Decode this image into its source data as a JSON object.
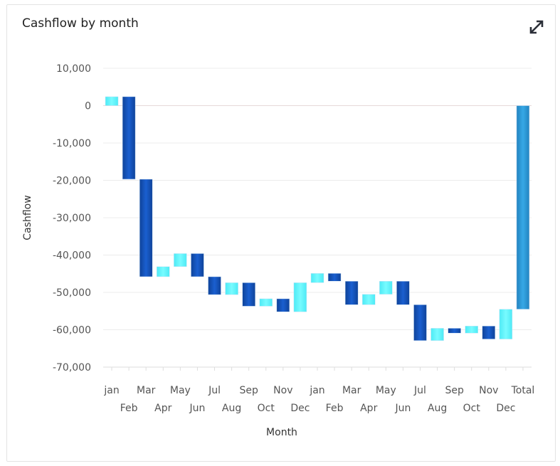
{
  "header": {
    "title": "Cashflow by month",
    "expand_icon": "expand-arrows-icon"
  },
  "chart_data": {
    "type": "waterfall",
    "title": "Cashflow by month",
    "xlabel": "Month",
    "ylabel": "Cashflow",
    "ylim": [
      -70000,
      10000
    ],
    "yticks": [
      10000,
      0,
      -10000,
      -20000,
      -30000,
      -40000,
      -50000,
      -60000,
      -70000
    ],
    "ytick_labels": [
      "10,000",
      "0",
      "-10,000",
      "-20,000",
      "-30,000",
      "-40,000",
      "-50,000",
      "-60,000",
      "-70,000"
    ],
    "grid": true,
    "categories": [
      "jan",
      "Feb",
      "Mar",
      "Apr",
      "May",
      "Jun",
      "Jul",
      "Aug",
      "Sep",
      "Oct",
      "Nov",
      "Dec",
      "jan",
      "Feb",
      "Mar",
      "Apr",
      "May",
      "Jun",
      "Jul",
      "Aug",
      "Sep",
      "Oct",
      "Nov",
      "Dec",
      "Total"
    ],
    "values": [
      2400,
      -22100,
      -26100,
      2700,
      3500,
      -6200,
      -4800,
      3200,
      -6300,
      2000,
      -3500,
      7800,
      2500,
      -2100,
      -6300,
      2800,
      3500,
      -6300,
      -9600,
      3300,
      -1300,
      1900,
      -3500,
      8000,
      -54500
    ],
    "total_index": 24,
    "colors": {
      "increase": "#5ef4fb",
      "decrease": "#1450b5",
      "total": "#2a9ad8"
    }
  }
}
